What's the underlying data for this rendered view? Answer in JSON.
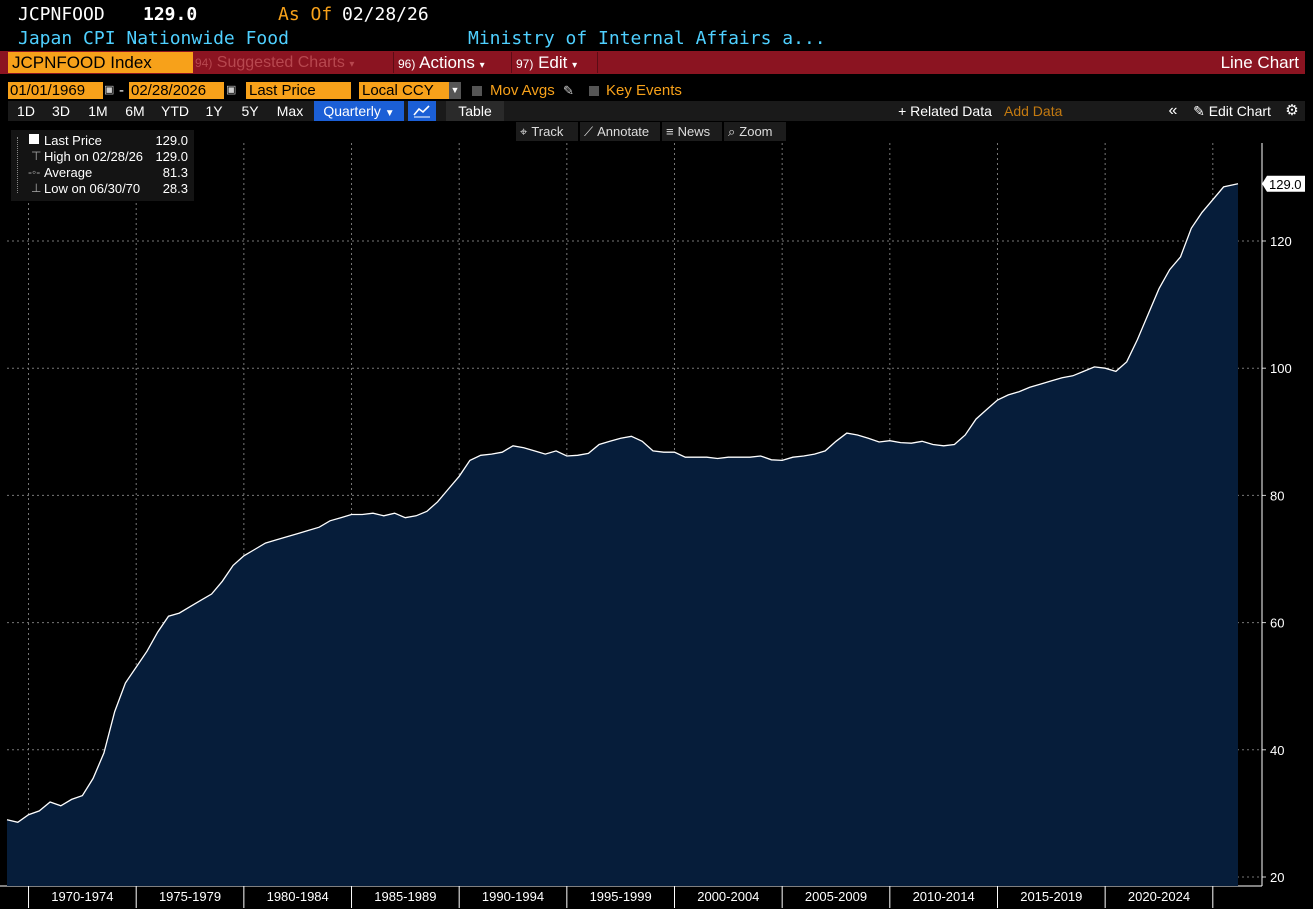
{
  "header": {
    "ticker": "JCPNFOOD",
    "last_value": "129.0",
    "as_of_label": "As Of",
    "as_of_date": "02/28/26",
    "description": "Japan CPI Nationwide Food",
    "source": "Ministry of Internal Affairs a..."
  },
  "toolbar": {
    "security": "JCPNFOOD Index",
    "suggested_num": "94)",
    "suggested_label": "Suggested Charts",
    "actions_num": "96)",
    "actions_label": "Actions",
    "edit_num": "97)",
    "edit_label": "Edit",
    "chart_type": "Line Chart"
  },
  "controls": {
    "start_date": "01/01/1969",
    "end_date": "02/28/2026",
    "field": "Last Price",
    "currency": "Local CCY",
    "mov_avgs": "Mov Avgs",
    "key_events": "Key Events",
    "periods": [
      "1D",
      "3D",
      "1M",
      "6M",
      "YTD",
      "1Y",
      "5Y",
      "Max"
    ],
    "frequency": "Quarterly",
    "table_label": "Table",
    "related_data": "+ Related Data",
    "add_data_placeholder": "Add Data",
    "edit_chart": "Edit Chart"
  },
  "tools": {
    "track": "Track",
    "annotate": "Annotate",
    "news": "News",
    "zoom": "Zoom"
  },
  "legend": {
    "last_price_label": "Last Price",
    "last_price_value": "129.0",
    "high_label": "High on 02/28/26",
    "high_value": "129.0",
    "average_label": "Average",
    "average_value": "81.3",
    "low_label": "Low on 06/30/70",
    "low_value": "28.3"
  },
  "colors": {
    "background": "#000000",
    "area_fill": "#061d3a",
    "line": "#ffffff",
    "accent_orange": "#f7a11a",
    "bar_red": "#8b1421",
    "subtitle_cyan": "#4fd0ff"
  },
  "chart_data": {
    "type": "area",
    "title": "",
    "xlabel": "",
    "ylabel": "",
    "ylim": [
      20,
      135
    ],
    "y_ticks": [
      20,
      40,
      60,
      80,
      100,
      120
    ],
    "x_range": [
      1969.0,
      2026.17
    ],
    "x_tick_labels": [
      "1970-1974",
      "1975-1979",
      "1980-1984",
      "1985-1989",
      "1990-1994",
      "1995-1999",
      "2000-2004",
      "2005-2009",
      "2010-2014",
      "2015-2019",
      "2020-2024"
    ],
    "last_value_label": "129.0",
    "grid": true,
    "series": [
      {
        "x": [
          1969.0,
          1969.5,
          1970.0,
          1970.5,
          1971.0,
          1971.5,
          1972.0,
          1972.5,
          1973.0,
          1973.5,
          1974.0,
          1974.5,
          1975.0,
          1975.5,
          1976.0,
          1976.5,
          1977.0,
          1977.5,
          1978.0,
          1978.5,
          1979.0,
          1979.5,
          1980.0,
          1980.5,
          1981.0,
          1981.5,
          1982.0,
          1982.5,
          1983.0,
          1983.5,
          1984.0,
          1984.5,
          1985.0,
          1985.5,
          1986.0,
          1986.5,
          1987.0,
          1987.5,
          1988.0,
          1988.5,
          1989.0,
          1989.5,
          1990.0,
          1990.5,
          1991.0,
          1991.5,
          1992.0,
          1992.5,
          1993.0,
          1993.5,
          1994.0,
          1994.5,
          1995.0,
          1995.5,
          1996.0,
          1996.5,
          1997.0,
          1997.5,
          1998.0,
          1998.5,
          1999.0,
          1999.5,
          2000.0,
          2000.5,
          2001.0,
          2001.5,
          2002.0,
          2002.5,
          2003.0,
          2003.5,
          2004.0,
          2004.5,
          2005.0,
          2005.5,
          2006.0,
          2006.5,
          2007.0,
          2007.5,
          2008.0,
          2008.5,
          2009.0,
          2009.5,
          2010.0,
          2010.5,
          2011.0,
          2011.5,
          2012.0,
          2012.5,
          2013.0,
          2013.5,
          2014.0,
          2014.5,
          2015.0,
          2015.5,
          2016.0,
          2016.5,
          2017.0,
          2017.5,
          2018.0,
          2018.5,
          2019.0,
          2019.5,
          2020.0,
          2020.5,
          2021.0,
          2021.5,
          2022.0,
          2022.5,
          2023.0,
          2023.5,
          2024.0,
          2024.5,
          2025.0,
          2025.5,
          2026.17
        ],
        "values": [
          29.0,
          28.6,
          29.8,
          30.4,
          31.8,
          31.2,
          32.2,
          32.8,
          35.5,
          39.5,
          46.0,
          50.5,
          53.0,
          55.5,
          58.5,
          61.0,
          61.5,
          62.5,
          63.5,
          64.5,
          66.5,
          69.0,
          70.5,
          71.5,
          72.5,
          73.0,
          73.5,
          74.0,
          74.5,
          75.0,
          76.0,
          76.5,
          77.0,
          77.0,
          77.2,
          76.8,
          77.2,
          76.5,
          76.8,
          77.5,
          79.0,
          81.0,
          83.0,
          85.5,
          86.3,
          86.5,
          86.8,
          87.8,
          87.5,
          87.0,
          86.5,
          87.0,
          86.2,
          86.3,
          86.6,
          88.0,
          88.5,
          89.0,
          89.3,
          88.5,
          87.0,
          86.8,
          86.8,
          86.0,
          86.0,
          86.0,
          85.8,
          86.0,
          86.0,
          86.0,
          86.2,
          85.6,
          85.5,
          86.0,
          86.2,
          86.5,
          87.0,
          88.5,
          89.8,
          89.5,
          89.0,
          88.4,
          88.6,
          88.3,
          88.2,
          88.5,
          88.0,
          87.8,
          88.0,
          89.5,
          92.0,
          93.5,
          95.0,
          95.8,
          96.3,
          97.0,
          97.5,
          98.0,
          98.5,
          98.8,
          99.5,
          100.2,
          100.0,
          99.5,
          101.0,
          104.5,
          108.5,
          112.5,
          115.5,
          117.5,
          122.0,
          124.5,
          126.5,
          128.5,
          129.0
        ]
      }
    ]
  }
}
